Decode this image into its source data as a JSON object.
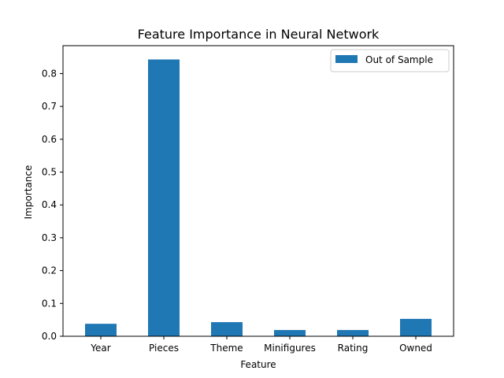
{
  "chart_data": {
    "type": "bar",
    "title": "Feature Importance in Neural Network",
    "xlabel": "Feature",
    "ylabel": "Importance",
    "categories": [
      "Year",
      "Pieces",
      "Theme",
      "Minifigures",
      "Rating",
      "Owned"
    ],
    "series": [
      {
        "name": "Out of Sample",
        "values": [
          0.038,
          0.843,
          0.043,
          0.019,
          0.019,
          0.053
        ]
      }
    ],
    "ylim": [
      0,
      0.885
    ],
    "yticks": [
      0.0,
      0.1,
      0.2,
      0.3,
      0.4,
      0.5,
      0.6,
      0.7,
      0.8
    ],
    "ytick_labels": [
      "0.0",
      "0.1",
      "0.2",
      "0.3",
      "0.4",
      "0.5",
      "0.6",
      "0.7",
      "0.8"
    ],
    "grid": false,
    "legend_position": "top-right",
    "colors": {
      "bar": "#1f77b4",
      "axes": "#000000",
      "background": "#ffffff"
    }
  }
}
